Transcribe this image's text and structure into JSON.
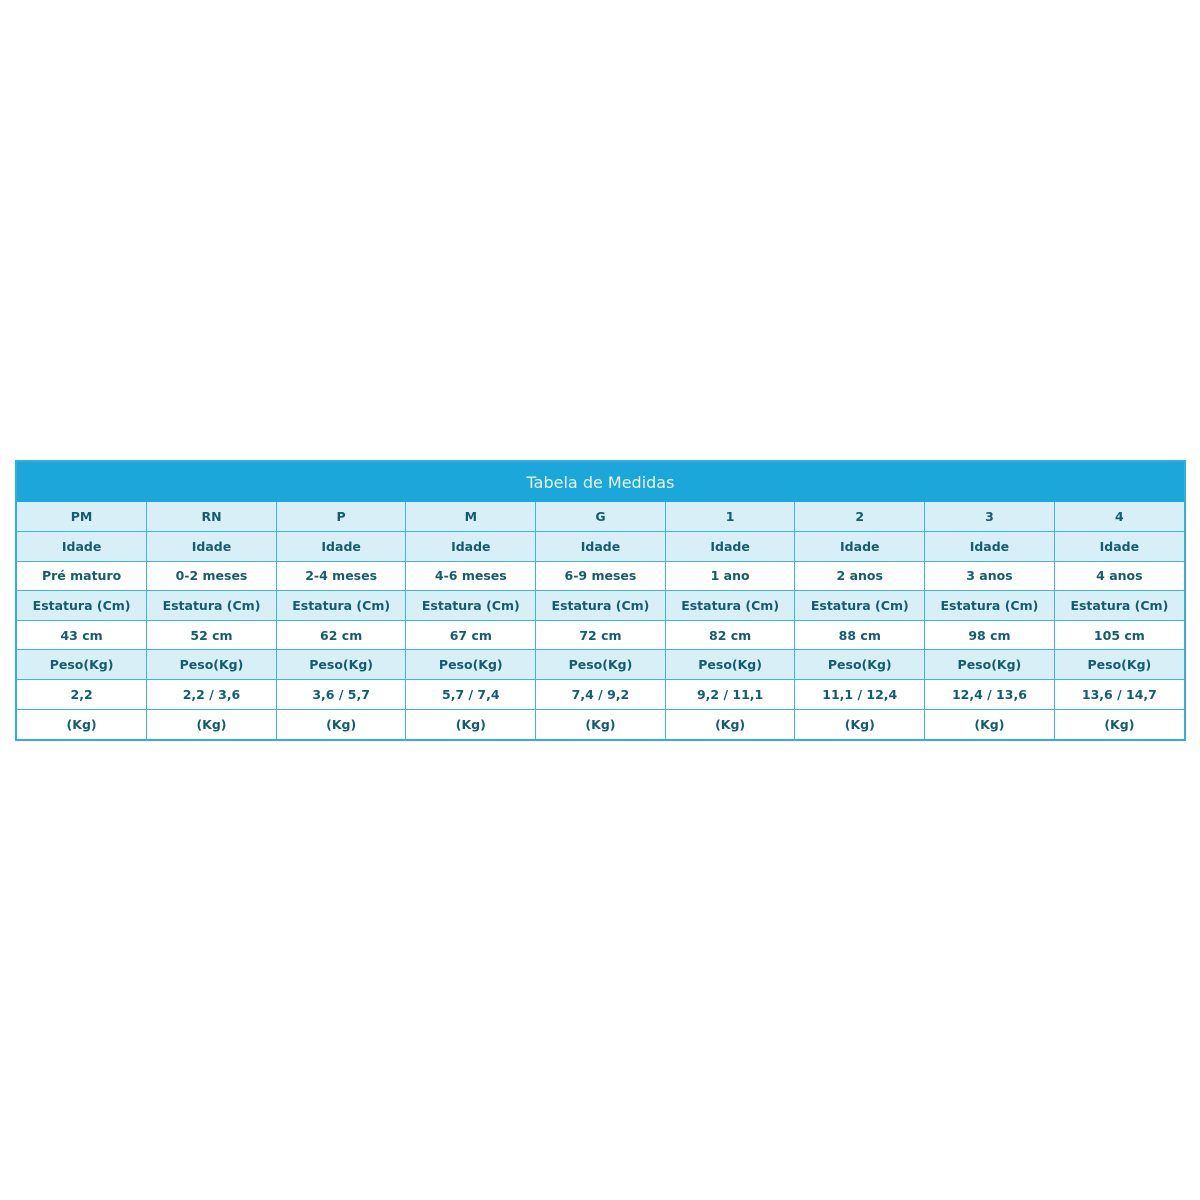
{
  "title": "Tabela de Medidas",
  "colors": {
    "header": "#1ba7d9",
    "label_row": "#d8eff7",
    "text": "#125e70",
    "border": "#3cb6dc"
  },
  "sizes": [
    "PM",
    "RN",
    "P",
    "M",
    "G",
    "1",
    "2",
    "3",
    "4"
  ],
  "rows": [
    {
      "type": "lbl",
      "cells": [
        "Idade",
        "Idade",
        "Idade",
        "Idade",
        "Idade",
        "Idade",
        "Idade",
        "Idade",
        "Idade"
      ]
    },
    {
      "type": "val",
      "cells": [
        "Pré maturo",
        "0-2 meses",
        "2-4 meses",
        "4-6 meses",
        "6-9 meses",
        "1 ano",
        "2 anos",
        "3 anos",
        "4 anos"
      ]
    },
    {
      "type": "lbl",
      "cells": [
        "Estatura (Cm)",
        "Estatura (Cm)",
        "Estatura (Cm)",
        "Estatura (Cm)",
        "Estatura (Cm)",
        "Estatura (Cm)",
        "Estatura (Cm)",
        "Estatura (Cm)",
        "Estatura (Cm)"
      ]
    },
    {
      "type": "val",
      "cells": [
        "43 cm",
        "52 cm",
        "62 cm",
        "67 cm",
        "72 cm",
        "82 cm",
        "88 cm",
        "98 cm",
        "105 cm"
      ]
    },
    {
      "type": "lbl",
      "cells": [
        "Peso(Kg)",
        "Peso(Kg)",
        "Peso(Kg)",
        "Peso(Kg)",
        "Peso(Kg)",
        "Peso(Kg)",
        "Peso(Kg)",
        "Peso(Kg)",
        "Peso(Kg)"
      ]
    },
    {
      "type": "val",
      "cells": [
        "2,2",
        "2,2 / 3,6",
        "3,6 / 5,7",
        "5,7 / 7,4",
        "7,4 / 9,2",
        "9,2 / 11,1",
        "11,1 / 12,4",
        "12,4 / 13,6",
        "13,6 / 14,7"
      ]
    },
    {
      "type": "val",
      "cells": [
        "(Kg)",
        "(Kg)",
        "(Kg)",
        "(Kg)",
        "(Kg)",
        "(Kg)",
        "(Kg)",
        "(Kg)",
        "(Kg)"
      ]
    }
  ]
}
